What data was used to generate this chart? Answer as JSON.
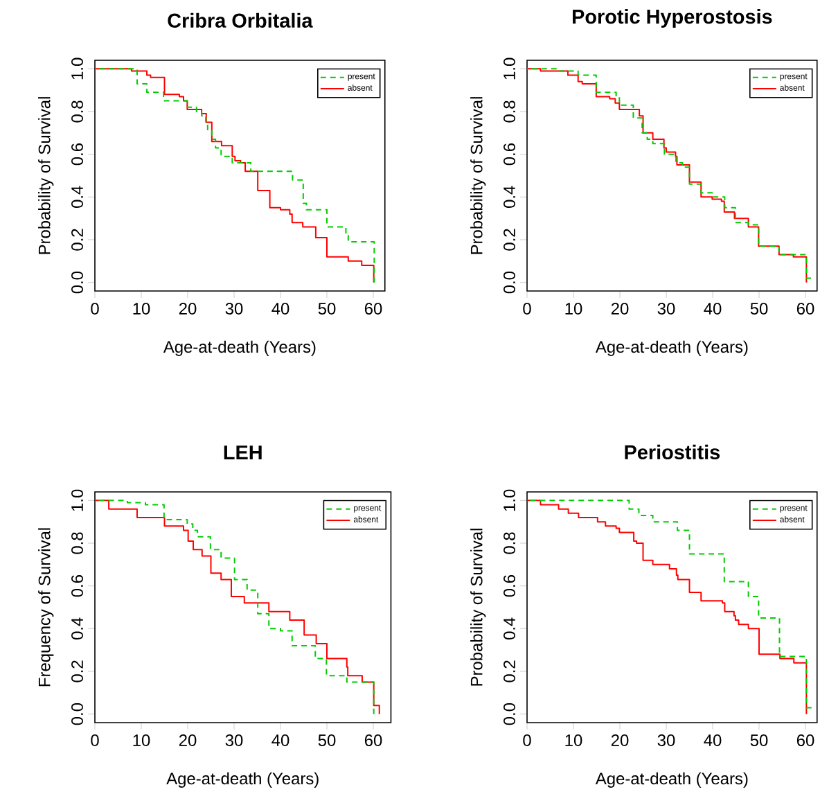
{
  "chart_data": [
    {
      "type": "step",
      "title": "Cribra Orbitalia",
      "xlabel": "Age-at-death (Years)",
      "ylabel": "Probability of Survival",
      "xlim": [
        0,
        62.5
      ],
      "ylim": [
        -0.04,
        1.04
      ],
      "xticks": [
        0,
        10,
        20,
        30,
        40,
        50,
        60
      ],
      "yticks": [
        {
          "value": 0,
          "label": "0.0"
        },
        {
          "value": 0.2,
          "label": "0.2"
        },
        {
          "value": 0.4,
          "label": "0.4"
        },
        {
          "value": 0.6,
          "label": "0.6"
        },
        {
          "value": 0.8,
          "label": "0.8"
        },
        {
          "value": 1,
          "label": "1.0"
        }
      ],
      "legend": "top right",
      "grid": false,
      "series": [
        {
          "name": "present",
          "color": "#00cc00",
          "line_style": "dashed",
          "x": [
            0,
            9.1,
            11.2,
            14.8,
            19.9,
            21.9,
            23.0,
            23.9,
            24.3,
            25.2,
            26.0,
            27.2,
            29.6,
            32.6,
            33.6,
            42.6,
            44.9,
            45.6,
            50.0,
            54.1,
            54.6,
            60.2
          ],
          "values": [
            1,
            0.93,
            0.89,
            0.85,
            0.82,
            0.8,
            0.78,
            0.74,
            0.71,
            0.67,
            0.63,
            0.59,
            0.56,
            0.56,
            0.52,
            0.48,
            0.37,
            0.34,
            0.26,
            0.22,
            0.19,
            0
          ]
        },
        {
          "name": "absent",
          "color": "#ff0000",
          "line_style": "solid",
          "x": [
            0,
            7.9,
            11.2,
            12.0,
            15.0,
            18.2,
            19.1,
            19.9,
            23.0,
            24.0,
            25.2,
            27.3,
            29.6,
            30.2,
            31.4,
            32.4,
            35.1,
            37.7,
            40.0,
            42.0,
            42.5,
            44.8,
            47.6,
            50.0,
            54.6,
            57.5,
            60.1
          ],
          "values": [
            1,
            0.99,
            0.97,
            0.96,
            0.88,
            0.87,
            0.85,
            0.81,
            0.79,
            0.75,
            0.66,
            0.64,
            0.59,
            0.57,
            0.56,
            0.52,
            0.43,
            0.35,
            0.34,
            0.32,
            0.28,
            0.26,
            0.21,
            0.12,
            0.1,
            0.08,
            0
          ]
        }
      ]
    },
    {
      "type": "step",
      "title": "Porotic Hyperostosis",
      "xlabel": "Age-at-death (Years)",
      "ylabel": "Probability of Survival",
      "xlim": [
        0,
        62.5
      ],
      "ylim": [
        -0.04,
        1.04
      ],
      "xticks": [
        0,
        10,
        20,
        30,
        40,
        50,
        60
      ],
      "yticks": [
        {
          "value": 0,
          "label": "0.0"
        },
        {
          "value": 0.2,
          "label": "0.2"
        },
        {
          "value": 0.4,
          "label": "0.4"
        },
        {
          "value": 0.6,
          "label": "0.6"
        },
        {
          "value": 0.8,
          "label": "0.8"
        },
        {
          "value": 1,
          "label": "1.0"
        }
      ],
      "legend": "top right",
      "grid": false,
      "series": [
        {
          "name": "present",
          "color": "#00cc00",
          "line_style": "dashed",
          "x": [
            0,
            6.7,
            11.0,
            14.9,
            19.2,
            19.9,
            22.9,
            24.8,
            25.9,
            27.1,
            29.6,
            32.1,
            33.5,
            35.0,
            37.5,
            39.9,
            42.6,
            44.9,
            47.7,
            49.9,
            54.3,
            60.2,
            61.2
          ],
          "values": [
            1,
            0.99,
            0.97,
            0.89,
            0.87,
            0.83,
            0.77,
            0.7,
            0.67,
            0.65,
            0.6,
            0.56,
            0.54,
            0.46,
            0.42,
            0.4,
            0.35,
            0.28,
            0.27,
            0.17,
            0.13,
            0.02,
            0.02
          ]
        },
        {
          "name": "absent",
          "color": "#ff0000",
          "line_style": "solid",
          "x": [
            0,
            2.9,
            8.8,
            11.0,
            11.9,
            14.9,
            17.8,
            19.0,
            19.9,
            24.2,
            25.0,
            27.1,
            29.5,
            30.0,
            32.0,
            32.3,
            35.0,
            37.5,
            39.9,
            41.9,
            42.5,
            44.7,
            47.7,
            49.9,
            54.3,
            57.4,
            60.2
          ],
          "values": [
            1,
            0.99,
            0.97,
            0.94,
            0.93,
            0.87,
            0.86,
            0.84,
            0.81,
            0.78,
            0.7,
            0.67,
            0.63,
            0.61,
            0.59,
            0.55,
            0.47,
            0.4,
            0.39,
            0.38,
            0.33,
            0.3,
            0.26,
            0.17,
            0.13,
            0.12,
            0
          ]
        }
      ]
    },
    {
      "type": "step",
      "title": "LEH",
      "xlabel": "Age-at-death (Years)",
      "ylabel": "Frequency of Survival",
      "xlim": [
        0,
        63.8
      ],
      "ylim": [
        -0.04,
        1.04
      ],
      "xticks": [
        0,
        10,
        20,
        30,
        40,
        50,
        60
      ],
      "yticks": [
        {
          "value": 0,
          "label": "0.0"
        },
        {
          "value": 0.2,
          "label": "0.2"
        },
        {
          "value": 0.4,
          "label": "0.4"
        },
        {
          "value": 0.6,
          "label": "0.6"
        },
        {
          "value": 0.8,
          "label": "0.8"
        },
        {
          "value": 1,
          "label": "1.0"
        }
      ],
      "legend": "top right",
      "grid": false,
      "series": [
        {
          "name": "present",
          "color": "#00cc00",
          "line_style": "dashed",
          "x": [
            0,
            7.0,
            10.9,
            14.9,
            19.9,
            21.1,
            22.1,
            24.9,
            27.2,
            30.1,
            32.8,
            35.1,
            37.5,
            40.0,
            42.5,
            47.5,
            49.9,
            54.3,
            60.1
          ],
          "values": [
            1,
            0.99,
            0.98,
            0.91,
            0.89,
            0.86,
            0.83,
            0.77,
            0.73,
            0.63,
            0.58,
            0.47,
            0.4,
            0.39,
            0.32,
            0.26,
            0.18,
            0.15,
            0
          ]
        },
        {
          "name": "absent",
          "color": "#ff0000",
          "line_style": "solid",
          "x": [
            0,
            3.0,
            9.1,
            15.0,
            19.1,
            20.1,
            21.2,
            23.1,
            25.0,
            27.2,
            29.4,
            32.2,
            37.5,
            42.0,
            45.1,
            47.7,
            50.0,
            54.3,
            54.5,
            57.6,
            60.1,
            61.3
          ],
          "values": [
            1,
            0.96,
            0.92,
            0.88,
            0.86,
            0.81,
            0.77,
            0.74,
            0.66,
            0.63,
            0.55,
            0.52,
            0.48,
            0.44,
            0.37,
            0.33,
            0.26,
            0.22,
            0.18,
            0.15,
            0.04,
            0
          ]
        }
      ]
    },
    {
      "type": "step",
      "title": "Periostitis",
      "xlabel": "Age-at-death (Years)",
      "ylabel": "Probability of Survival",
      "xlim": [
        0,
        62.5
      ],
      "ylim": [
        -0.04,
        1.04
      ],
      "xticks": [
        0,
        10,
        20,
        30,
        40,
        50,
        60
      ],
      "yticks": [
        {
          "value": 0,
          "label": "0.0"
        },
        {
          "value": 0.2,
          "label": "0.2"
        },
        {
          "value": 0.4,
          "label": "0.4"
        },
        {
          "value": 0.6,
          "label": "0.6"
        },
        {
          "value": 0.8,
          "label": "0.8"
        },
        {
          "value": 1,
          "label": "1.0"
        }
      ],
      "legend": "top right",
      "grid": false,
      "series": [
        {
          "name": "present",
          "color": "#00cc00",
          "line_style": "dashed",
          "x": [
            0,
            22.0,
            24.1,
            27.1,
            32.4,
            35.0,
            42.5,
            47.7,
            49.9,
            54.4,
            60.2,
            61.3
          ],
          "values": [
            1,
            0.96,
            0.93,
            0.9,
            0.86,
            0.75,
            0.62,
            0.55,
            0.45,
            0.27,
            0.03,
            0.03
          ]
        },
        {
          "name": "absent",
          "color": "#ff0000",
          "line_style": "solid",
          "x": [
            0,
            2.9,
            6.8,
            8.9,
            11.1,
            15.2,
            16.9,
            19.2,
            19.9,
            23.0,
            23.6,
            25.0,
            27.1,
            30.7,
            32.2,
            32.5,
            35.0,
            37.5,
            42.1,
            42.6,
            44.6,
            44.9,
            45.6,
            47.7,
            50.0,
            54.5,
            57.5,
            60.2
          ],
          "values": [
            1,
            0.98,
            0.96,
            0.94,
            0.92,
            0.9,
            0.88,
            0.87,
            0.85,
            0.81,
            0.8,
            0.72,
            0.7,
            0.68,
            0.65,
            0.63,
            0.57,
            0.53,
            0.52,
            0.48,
            0.46,
            0.44,
            0.42,
            0.4,
            0.28,
            0.26,
            0.24,
            0
          ]
        }
      ]
    }
  ]
}
